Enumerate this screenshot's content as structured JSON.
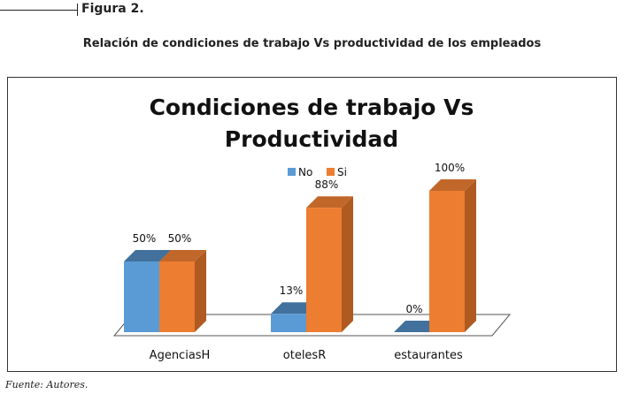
{
  "figure": {
    "label": "Figura 2.",
    "caption": "Relación de condiciones de trabajo Vs productividad de los empleados",
    "source": "Fuente: Autores."
  },
  "chart_data": {
    "type": "bar",
    "title": [
      "Condiciones de trabajo Vs",
      "Productividad"
    ],
    "xlabel": "",
    "ylabel": "",
    "ylim": [
      0,
      100
    ],
    "grid": false,
    "legend_position": "top",
    "categories": [
      "AgenciasH",
      "otelesR",
      "estaurantes"
    ],
    "series": [
      {
        "name": "No",
        "values": [
          50,
          13,
          0
        ],
        "labels": [
          "50%",
          "13%",
          "0%"
        ]
      },
      {
        "name": "Si",
        "values": [
          50,
          88,
          100
        ],
        "labels": [
          "50%",
          "88%",
          "100%"
        ]
      }
    ],
    "colors": {
      "No": {
        "front": "#5b9bd5",
        "side": "#41719c",
        "top": "#41719c"
      },
      "Si": {
        "front": "#ed7d31",
        "side": "#ae5a21",
        "top": "#c1672a"
      }
    }
  }
}
